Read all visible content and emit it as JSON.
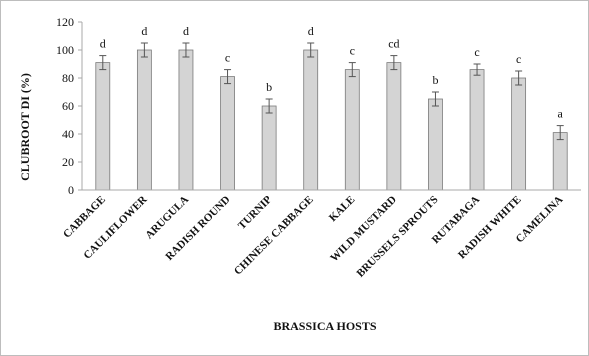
{
  "chart_data": {
    "type": "bar",
    "xlabel": "BRASSICA HOSTS",
    "ylabel": "CLUBROOT DI (%)",
    "ylim": [
      0,
      120
    ],
    "yticks": [
      0,
      20,
      40,
      60,
      80,
      100,
      120
    ],
    "grid": false,
    "legend": "none",
    "bar_color": "#d4d4d4",
    "bar_edge_color": "#7a7a7a",
    "axis_color": "#a8a8a8",
    "categories": [
      "CABBAGE",
      "CAULIFLOWER",
      "ARUGULA",
      "RADISH ROUND",
      "TURNIP",
      "CHINESE CABBAGE",
      "KALE",
      "WILD MUSTARD",
      "BRUSSELS SPROUTS",
      "RUTABAGA",
      "RADISH WHITE",
      "CAMELINA"
    ],
    "values": [
      91,
      100,
      100,
      81,
      60,
      100,
      86,
      91,
      65,
      86,
      80,
      41
    ],
    "errors": [
      5,
      5,
      5,
      5,
      5,
      5,
      5,
      5,
      5,
      4,
      5,
      5
    ],
    "letters": [
      "d",
      "d",
      "d",
      "c",
      "b",
      "d",
      "c",
      "cd",
      "b",
      "c",
      "c",
      "a"
    ]
  }
}
